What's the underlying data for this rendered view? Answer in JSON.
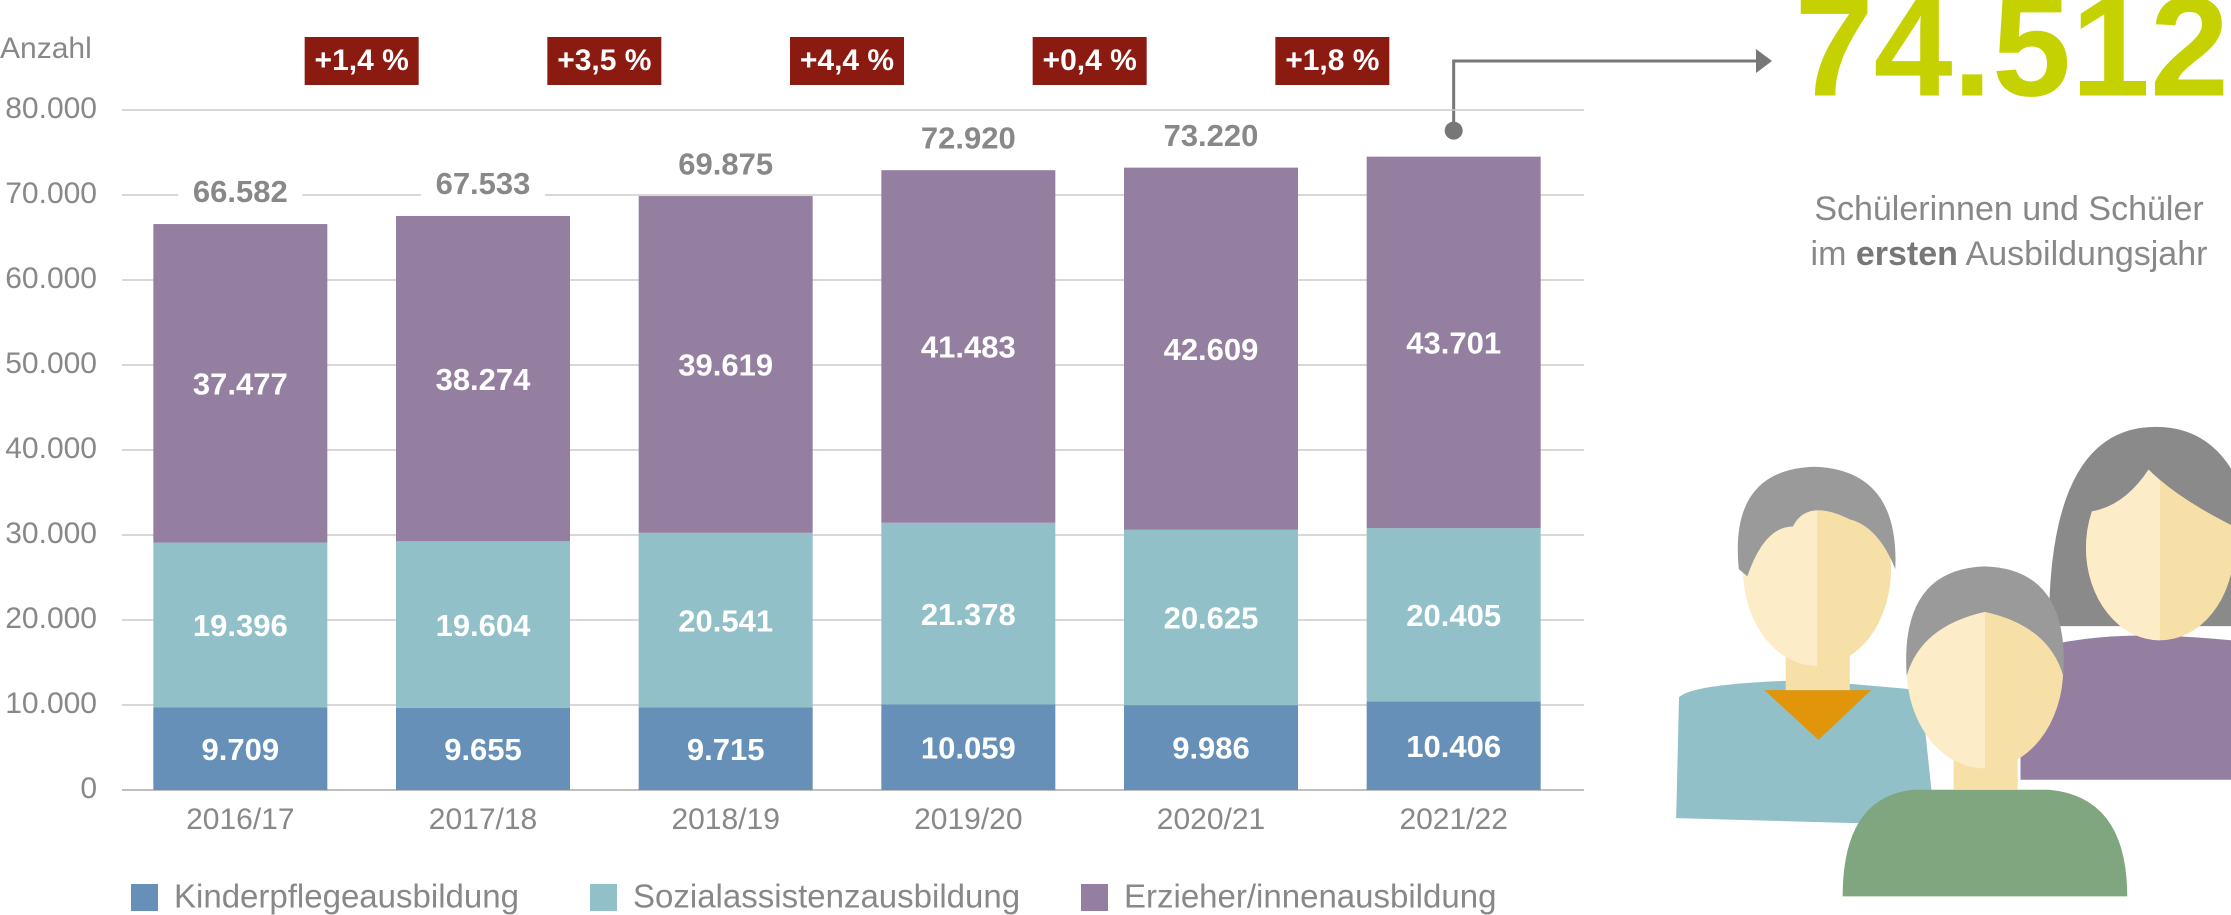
{
  "chart_data": {
    "type": "stacked_bar",
    "y_label": "Anzahl",
    "categories": [
      "2016/17",
      "2017/18",
      "2018/19",
      "2019/20",
      "2020/21",
      "2021/22"
    ],
    "series": [
      {
        "name": "Kinderpflegeausbildung",
        "color": "#6690b8",
        "values": [
          9709,
          9655,
          9715,
          10059,
          9986,
          10406
        ],
        "value_labels": [
          "9.709",
          "9.655",
          "9.715",
          "10.059",
          "9.986",
          "10.406"
        ]
      },
      {
        "name": "Sozialassistenzausbildung",
        "color": "#92c0c9",
        "values": [
          19396,
          19604,
          20541,
          21378,
          20625,
          20405
        ],
        "value_labels": [
          "19.396",
          "19.604",
          "20.541",
          "21.378",
          "20.625",
          "20.405"
        ]
      },
      {
        "name": "Erzieher/innenausbildung",
        "color": "#957fa1",
        "values": [
          37477,
          38274,
          39619,
          41483,
          42609,
          43701
        ],
        "value_labels": [
          "37.477",
          "38.274",
          "39.619",
          "41.483",
          "42.609",
          "43.701"
        ]
      }
    ],
    "totals": [
      66582,
      67533,
      69875,
      72920,
      73220
    ],
    "total_labels": [
      "66.582",
      "67.533",
      "69.875",
      "72.920",
      "73.220"
    ],
    "changes": [
      {
        "value": 1.4,
        "label": "+1,4 %"
      },
      {
        "value": 3.5,
        "label": "+3,5 %"
      },
      {
        "value": 4.4,
        "label": "+4,4 %"
      },
      {
        "value": 0.4,
        "label": "+0,4 %"
      },
      {
        "value": 1.8,
        "label": "+1,8 %"
      }
    ],
    "change_color": "#8b1a10",
    "highlight": {
      "value": 74512,
      "label": "74.512",
      "color": "#c5d100"
    },
    "caption": {
      "line1": "Schülerinnen und Schüler",
      "line2_pre": "im",
      "line2_bold": "ersten",
      "line2_post": "Ausbildungsjahr"
    },
    "ylim": [
      0,
      80000
    ],
    "yticks": [
      0,
      {
        "value": 10000,
        "label": "10.000"
      },
      {
        "value": 20000,
        "label": "20.000"
      },
      {
        "value": 30000,
        "label": "30.000"
      },
      {
        "value": 40000,
        "label": "40.000"
      },
      {
        "value": 50000,
        "label": "50.000"
      },
      {
        "value": 60000,
        "label": "60.000"
      },
      {
        "value": 70000,
        "label": "70.000"
      },
      {
        "value": 80000,
        "label": "80.000"
      }
    ],
    "grid": true
  }
}
